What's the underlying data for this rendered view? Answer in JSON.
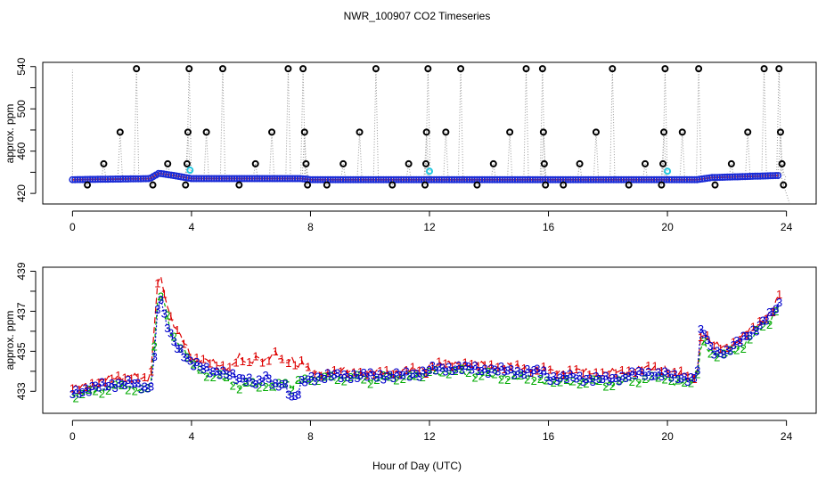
{
  "chart_data": {
    "title": "NWR_100907  CO2 Timeseries",
    "xlabel": "Hour of Day (UTC)",
    "panels": [
      {
        "type": "scatter",
        "ylabel": "approx. ppm",
        "xlim": [
          -1,
          25
        ],
        "ylim": [
          410,
          544
        ],
        "x_ticks": [
          "0",
          "4",
          "8",
          "12",
          "16",
          "20",
          "24"
        ],
        "y_ticks": [
          "420",
          "460",
          "500",
          "540"
        ],
        "y_minor_ticks": [
          440,
          480,
          520
        ],
        "baseline": {
          "x": [
            0,
            2.6,
            2.9,
            3.4,
            4.0,
            7.7,
            8.0,
            21.0,
            21.5,
            23.8
          ],
          "y": [
            433,
            434,
            439,
            437,
            434,
            434,
            433,
            433,
            435,
            437
          ]
        },
        "spikes": [
          {
            "x": 0.5,
            "y": 428
          },
          {
            "x": 1.05,
            "y": 448
          },
          {
            "x": 1.6,
            "y": 478
          },
          {
            "x": 2.15,
            "y": 538
          },
          {
            "x": 2.7,
            "y": 428
          },
          {
            "x": 3.2,
            "y": 448
          },
          {
            "x": 3.8,
            "y": 428
          },
          {
            "x": 3.85,
            "y": 448
          },
          {
            "x": 3.88,
            "y": 478
          },
          {
            "x": 3.92,
            "y": 538
          },
          {
            "x": 4.5,
            "y": 478
          },
          {
            "x": 5.05,
            "y": 538
          },
          {
            "x": 5.6,
            "y": 428
          },
          {
            "x": 6.15,
            "y": 448
          },
          {
            "x": 6.7,
            "y": 478
          },
          {
            "x": 7.25,
            "y": 538
          },
          {
            "x": 7.75,
            "y": 538
          },
          {
            "x": 7.8,
            "y": 478
          },
          {
            "x": 7.85,
            "y": 448
          },
          {
            "x": 7.9,
            "y": 428
          },
          {
            "x": 8.55,
            "y": 428
          },
          {
            "x": 9.1,
            "y": 448
          },
          {
            "x": 9.65,
            "y": 478
          },
          {
            "x": 10.2,
            "y": 538
          },
          {
            "x": 10.75,
            "y": 428
          },
          {
            "x": 11.3,
            "y": 448
          },
          {
            "x": 11.85,
            "y": 428
          },
          {
            "x": 11.88,
            "y": 448
          },
          {
            "x": 11.9,
            "y": 478
          },
          {
            "x": 11.95,
            "y": 538
          },
          {
            "x": 12.55,
            "y": 478
          },
          {
            "x": 13.05,
            "y": 538
          },
          {
            "x": 13.6,
            "y": 428
          },
          {
            "x": 14.15,
            "y": 448
          },
          {
            "x": 14.7,
            "y": 478
          },
          {
            "x": 15.25,
            "y": 538
          },
          {
            "x": 15.8,
            "y": 538
          },
          {
            "x": 15.83,
            "y": 478
          },
          {
            "x": 15.86,
            "y": 448
          },
          {
            "x": 15.9,
            "y": 428
          },
          {
            "x": 16.5,
            "y": 428
          },
          {
            "x": 17.05,
            "y": 448
          },
          {
            "x": 17.6,
            "y": 478
          },
          {
            "x": 18.15,
            "y": 538
          },
          {
            "x": 18.7,
            "y": 428
          },
          {
            "x": 19.25,
            "y": 448
          },
          {
            "x": 19.8,
            "y": 428
          },
          {
            "x": 19.85,
            "y": 448
          },
          {
            "x": 19.88,
            "y": 478
          },
          {
            "x": 19.92,
            "y": 538
          },
          {
            "x": 20.5,
            "y": 478
          },
          {
            "x": 21.05,
            "y": 538
          },
          {
            "x": 21.6,
            "y": 428
          },
          {
            "x": 22.15,
            "y": 448
          },
          {
            "x": 22.7,
            "y": 478
          },
          {
            "x": 23.25,
            "y": 538
          },
          {
            "x": 23.75,
            "y": 538
          },
          {
            "x": 23.8,
            "y": 478
          },
          {
            "x": 23.85,
            "y": 448
          },
          {
            "x": 23.9,
            "y": 428
          }
        ],
        "highlights": [
          {
            "x": 3.95,
            "y": 442
          },
          {
            "x": 12.0,
            "y": 441
          },
          {
            "x": 20.0,
            "y": 441
          }
        ]
      },
      {
        "type": "line",
        "ylabel": "approx. ppm",
        "xlim": [
          -1,
          25
        ],
        "ylim": [
          431.9,
          439.2
        ],
        "x_ticks": [
          "0",
          "4",
          "8",
          "12",
          "16",
          "20",
          "24"
        ],
        "y_ticks": [
          "433",
          "435",
          "437",
          "439"
        ],
        "y_minor_ticks": [
          434,
          436,
          438
        ],
        "plot_symbols": [
          "1",
          "2",
          "3"
        ],
        "series": [
          {
            "name": "1",
            "color": "#dd0000",
            "x": [
              0,
              0.5,
              1,
              1.5,
              2,
              2.5,
              2.7,
              2.8,
              2.9,
              3.0,
              3.1,
              3.3,
              3.5,
              3.8,
              4.0,
              4.5,
              5.0,
              5.3,
              5.6,
              5.9,
              6.2,
              6.5,
              6.8,
              7.1,
              7.4,
              7.6,
              7.7,
              8.0,
              9.0,
              10.0,
              11.0,
              11.9,
              12.0,
              13.0,
              14.0,
              15.0,
              15.8,
              16.0,
              17.0,
              18.0,
              19.0,
              19.9,
              20.2,
              21.0,
              21.05,
              21.2,
              21.5,
              22.0,
              22.5,
              23.0,
              23.5,
              23.8
            ],
            "y": [
              433.1,
              433.3,
              433.5,
              433.7,
              433.8,
              433.5,
              434.2,
              438.2,
              438.9,
              438.6,
              437.8,
              436.6,
              436.0,
              435.4,
              434.7,
              434.5,
              434.3,
              434.2,
              434.7,
              434.3,
              434.8,
              434.5,
              434.9,
              434.4,
              434.7,
              434.2,
              434.5,
              433.9,
              434.0,
              433.9,
              434.0,
              434.1,
              434.3,
              434.4,
              434.3,
              434.2,
              434.1,
              434.0,
              434.0,
              433.9,
              434.1,
              434.2,
              433.9,
              433.8,
              435.5,
              436.0,
              435.3,
              435.2,
              435.7,
              436.3,
              437.0,
              437.9
            ]
          },
          {
            "name": "2",
            "color": "#00aa00",
            "x": [
              0,
              0.5,
              1,
              1.5,
              2,
              2.5,
              2.7,
              2.8,
              2.9,
              3.0,
              3.1,
              3.3,
              3.5,
              3.8,
              4.0,
              4.5,
              5.0,
              5.3,
              5.6,
              5.9,
              6.2,
              6.5,
              6.8,
              7.1,
              7.4,
              7.6,
              7.7,
              8.0,
              9.0,
              10.0,
              11.0,
              11.9,
              12.0,
              13.0,
              14.0,
              15.0,
              15.8,
              16.0,
              17.0,
              18.0,
              19.0,
              19.9,
              20.2,
              21.0,
              21.05,
              21.2,
              21.5,
              22.0,
              22.5,
              23.0,
              23.5,
              23.8
            ],
            "y": [
              432.8,
              432.9,
              433.1,
              433.2,
              433.2,
              433.0,
              433.6,
              437.0,
              437.6,
              437.9,
              437.4,
              436.0,
              435.5,
              434.9,
              434.3,
              433.9,
              433.7,
              433.5,
              433.3,
              433.4,
              433.2,
              433.4,
              433.2,
              433.5,
              433.1,
              433.6,
              433.6,
              433.6,
              433.7,
              433.6,
              433.7,
              433.8,
              434.0,
              434.0,
              433.8,
              433.7,
              433.6,
              433.5,
              433.5,
              433.4,
              433.6,
              433.7,
              433.5,
              433.5,
              435.0,
              435.5,
              434.9,
              434.8,
              435.3,
              435.9,
              436.6,
              437.6
            ]
          },
          {
            "name": "3",
            "color": "#0000cc",
            "x": [
              0,
              0.5,
              1,
              1.5,
              2,
              2.5,
              2.7,
              2.8,
              2.9,
              3.0,
              3.1,
              3.3,
              3.5,
              3.8,
              4.0,
              4.5,
              5.0,
              5.3,
              5.6,
              5.9,
              6.2,
              6.5,
              6.8,
              7.1,
              7.4,
              7.6,
              7.7,
              8.0,
              9.0,
              10.0,
              11.0,
              11.9,
              12.0,
              13.0,
              14.0,
              15.0,
              15.8,
              16.0,
              17.0,
              18.0,
              19.0,
              19.9,
              20.2,
              21.0,
              21.05,
              21.2,
              21.5,
              22.0,
              22.5,
              23.0,
              23.5,
              23.8
            ],
            "y": [
              433.0,
              433.1,
              433.3,
              433.4,
              433.4,
              433.2,
              433.5,
              435.8,
              438.1,
              437.3,
              436.6,
              435.8,
              435.3,
              434.8,
              434.4,
              434.1,
              434.0,
              433.8,
              433.6,
              433.7,
              433.4,
              433.7,
              433.3,
              433.5,
              432.6,
              432.9,
              433.4,
              433.7,
              433.8,
              433.8,
              433.8,
              434.0,
              434.1,
              434.2,
              434.1,
              434.0,
              434.0,
              433.7,
              433.7,
              433.6,
              433.9,
              433.9,
              433.7,
              433.7,
              435.9,
              436.0,
              435.0,
              435.0,
              435.6,
              436.2,
              436.9,
              437.4
            ]
          }
        ]
      }
    ]
  }
}
